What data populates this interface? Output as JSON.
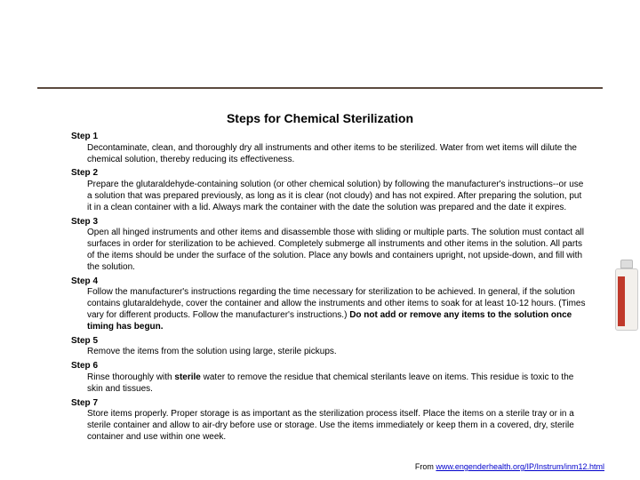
{
  "title": "Steps for Chemical Sterilization",
  "steps": [
    {
      "label": "Step 1",
      "body": "Decontaminate, clean, and thoroughly dry all instruments and other items to be sterilized. Water from wet items will dilute the chemical solution, thereby reducing its effectiveness."
    },
    {
      "label": "Step 2",
      "body": "Prepare the glutaraldehyde-containing solution (or other chemical solution) by following the manufacturer's instructions--or use a solution that was prepared previously, as long as it is clear (not cloudy) and has not expired. After preparing the solution, put it in a clean container with a lid. Always mark the container with the date the solution was prepared and the date it expires."
    },
    {
      "label": "Step 3",
      "body": "Open all hinged instruments and other items and disassemble those with sliding or multiple parts. The solution must contact all surfaces in order for sterilization to be achieved. Completely submerge all instruments and other items in the solution. All parts of the items should be under the surface of the solution. Place any bowls and containers upright, not upside-down, and fill with the solution."
    },
    {
      "label": "Step 4",
      "body_pre": "Follow the manufacturer's instructions regarding the time necessary for sterilization to be achieved. In general, if the solution contains glutaraldehyde, cover the container and allow the instruments and other items to soak for at least 10-12 hours. (Times vary for different products. Follow the manufacturer's instructions.) ",
      "body_bold": "Do not add or remove any items to the solution once timing has begun."
    },
    {
      "label": "Step 5",
      "body": "Remove the items from the solution using large, sterile pickups."
    },
    {
      "label": "Step 6",
      "body_pre": "Rinse thoroughly with ",
      "body_bold": "sterile",
      "body_post": " water to remove the residue that chemical sterilants leave on items. This residue is toxic to the skin and tissues."
    },
    {
      "label": "Step 7",
      "body": "Store items properly. Proper storage is as important as the sterilization process itself. Place the items on a sterile tray or in a sterile container and allow to air-dry before use or storage. Use the items immediately or keep them in a covered, dry, sterile container and use within one week."
    }
  ],
  "source_prefix": "From ",
  "source_link": "www.engenderhealth.org/IP/Instrum/inm12.html",
  "colors": {
    "hr": "#5b4a3f",
    "bottle_label": "#c0392b",
    "link": "#0000cc"
  }
}
